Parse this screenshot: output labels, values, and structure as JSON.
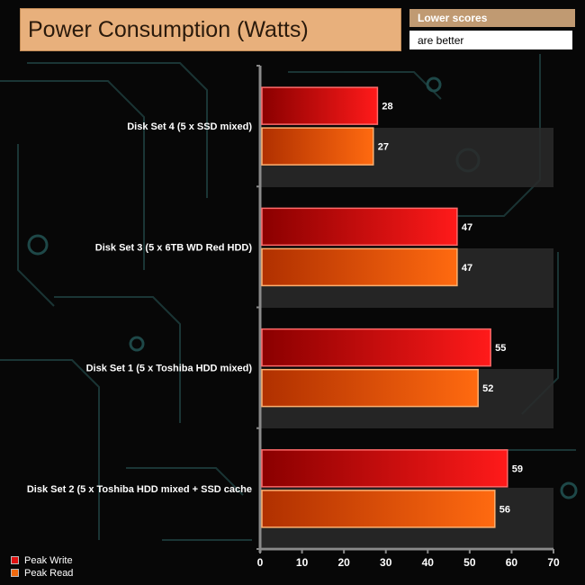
{
  "notes": {
    "line1": "Lower scores",
    "line2": "are better"
  },
  "colors": {
    "peak_write": "#e01010",
    "peak_read": "#f06a10",
    "title_bg": "#e8b07c",
    "axis": "#8a8a8a"
  },
  "chart_data": {
    "type": "bar",
    "orientation": "horizontal",
    "title": "Power Consumption (Watts)",
    "categories": [
      "Disk Set 4 (5 x SSD mixed)",
      "Disk Set 3 (5 x 6TB WD Red HDD)",
      "Disk Set 1 (5 x Toshiba HDD mixed)",
      "Disk Set 2 (5 x Toshiba HDD mixed + SSD cache"
    ],
    "series": [
      {
        "name": "Peak Write",
        "values": [
          28,
          47,
          55,
          59
        ]
      },
      {
        "name": "Peak Read",
        "values": [
          27,
          47,
          52,
          56
        ]
      }
    ],
    "xlim": [
      0,
      70
    ],
    "xticks": [
      0,
      10,
      20,
      30,
      40,
      50,
      60,
      70
    ],
    "legend": "bottom-left",
    "grid": false
  }
}
